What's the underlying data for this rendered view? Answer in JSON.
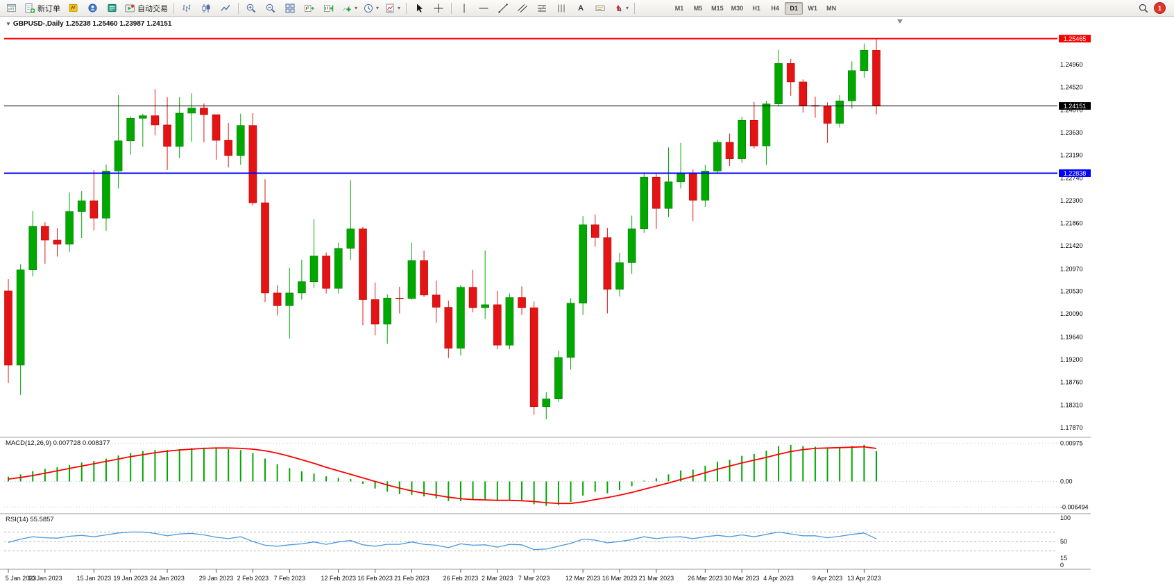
{
  "toolbar": {
    "new_order": "新订单",
    "autotrading": "自动交易",
    "text_tool": "A",
    "timeframes": [
      "M1",
      "M5",
      "M15",
      "M30",
      "H1",
      "H4",
      "D1",
      "W1",
      "MN"
    ],
    "active_timeframe": "D1",
    "notification_count": "1"
  },
  "panels": {
    "main_header": "GBPUSD-,Daily 1.25238 1.25460 1.23987 1.24151",
    "macd": {
      "header": "MACD(12,26,9) 0.007728 0.008377",
      "scale": [
        {
          "label": "0.00975",
          "value": 0.00975
        },
        {
          "label": "0.00",
          "value": 0
        },
        {
          "label": "-0.006494",
          "value": -0.006494
        }
      ]
    },
    "rsi": {
      "header": "RSI(14) 55.5857",
      "scale": [
        {
          "label": "100",
          "value": 100
        },
        {
          "label": "50",
          "value": 50
        },
        {
          "label": "15",
          "value": 15
        },
        {
          "label": "0",
          "value": 0
        }
      ],
      "levels": [
        70,
        50,
        30
      ]
    }
  },
  "chart_data": {
    "type": "candlestick",
    "symbol": "GBPUSD",
    "period": "Daily",
    "current_bar_ohlc": {
      "open": 1.25238,
      "high": 1.2546,
      "low": 1.23987,
      "close": 1.24151
    },
    "ylim": [
      1.1787,
      1.2575
    ],
    "y_ticks": [
      "1.25460",
      "1.24960",
      "1.24520",
      "1.24070",
      "1.23630",
      "1.23190",
      "1.22740",
      "1.22300",
      "1.21860",
      "1.21420",
      "1.20970",
      "1.20530",
      "1.20090",
      "1.19640",
      "1.19200",
      "1.18760",
      "1.18310",
      "1.17870"
    ],
    "x_ticks": [
      {
        "label": "5 Jan 2023",
        "bar": 0
      },
      {
        "label": "10 Jan 2023",
        "bar": 3
      },
      {
        "label": "15 Jan 2023",
        "bar": 7
      },
      {
        "label": "19 Jan 2023",
        "bar": 10
      },
      {
        "label": "24 Jan 2023",
        "bar": 13
      },
      {
        "label": "29 Jan 2023",
        "bar": 17
      },
      {
        "label": "2 Feb 2023",
        "bar": 20
      },
      {
        "label": "7 Feb 2023",
        "bar": 23
      },
      {
        "label": "12 Feb 2023",
        "bar": 27
      },
      {
        "label": "16 Feb 2023",
        "bar": 30
      },
      {
        "label": "21 Feb 2023",
        "bar": 33
      },
      {
        "label": "26 Feb 2023",
        "bar": 37
      },
      {
        "label": "2 Mar 2023",
        "bar": 40
      },
      {
        "label": "7 Mar 2023",
        "bar": 43
      },
      {
        "label": "12 Mar 2023",
        "bar": 47
      },
      {
        "label": "16 Mar 2023",
        "bar": 50
      },
      {
        "label": "21 Mar 2023",
        "bar": 53
      },
      {
        "label": "26 Mar 2023",
        "bar": 57
      },
      {
        "label": "30 Mar 2023",
        "bar": 60
      },
      {
        "label": "4 Apr 2023",
        "bar": 63
      },
      {
        "label": "9 Apr 2023",
        "bar": 67
      },
      {
        "label": "13 Apr 2023",
        "bar": 70
      }
    ],
    "levels": [
      {
        "name": "resistance-line",
        "price": 1.25465,
        "label": "1.25465",
        "color": "#FF0000",
        "width": 2
      },
      {
        "name": "bid-line",
        "price": 1.24151,
        "label": "1.24151",
        "color": "#000000",
        "width": 1
      },
      {
        "name": "support-line",
        "price": 1.22838,
        "label": "1.22838",
        "color": "#0000FF",
        "width": 2
      }
    ],
    "candles": [
      {
        "d": "2023-01-05",
        "o": 1.2054,
        "h": 1.2077,
        "l": 1.1874,
        "c": 1.1909
      },
      {
        "d": "2023-01-06",
        "o": 1.1909,
        "h": 1.2106,
        "l": 1.1851,
        "c": 1.2095
      },
      {
        "d": "2023-01-09",
        "o": 1.2095,
        "h": 1.221,
        "l": 1.2082,
        "c": 1.218
      },
      {
        "d": "2023-01-10",
        "o": 1.218,
        "h": 1.2188,
        "l": 1.2107,
        "c": 1.2153
      },
      {
        "d": "2023-01-11",
        "o": 1.2153,
        "h": 1.2176,
        "l": 1.2121,
        "c": 1.2145
      },
      {
        "d": "2023-01-12",
        "o": 1.2145,
        "h": 1.2246,
        "l": 1.213,
        "c": 1.2209
      },
      {
        "d": "2023-01-13",
        "o": 1.2209,
        "h": 1.2249,
        "l": 1.2157,
        "c": 1.223
      },
      {
        "d": "2023-01-16",
        "o": 1.223,
        "h": 1.229,
        "l": 1.2172,
        "c": 1.2196
      },
      {
        "d": "2023-01-17",
        "o": 1.2196,
        "h": 1.2301,
        "l": 1.2171,
        "c": 1.2288
      },
      {
        "d": "2023-01-18",
        "o": 1.2288,
        "h": 1.2436,
        "l": 1.2254,
        "c": 1.2347
      },
      {
        "d": "2023-01-19",
        "o": 1.2347,
        "h": 1.2395,
        "l": 1.232,
        "c": 1.2391
      },
      {
        "d": "2023-01-20",
        "o": 1.2391,
        "h": 1.24,
        "l": 1.2335,
        "c": 1.2396
      },
      {
        "d": "2023-01-23",
        "o": 1.2396,
        "h": 1.2448,
        "l": 1.2358,
        "c": 1.2378
      },
      {
        "d": "2023-01-24",
        "o": 1.2378,
        "h": 1.2432,
        "l": 1.229,
        "c": 1.2336
      },
      {
        "d": "2023-01-25",
        "o": 1.2336,
        "h": 1.2432,
        "l": 1.2313,
        "c": 1.2401
      },
      {
        "d": "2023-01-26",
        "o": 1.2401,
        "h": 1.244,
        "l": 1.2345,
        "c": 1.2411
      },
      {
        "d": "2023-01-27",
        "o": 1.2411,
        "h": 1.242,
        "l": 1.2344,
        "c": 1.2398
      },
      {
        "d": "2023-01-30",
        "o": 1.2398,
        "h": 1.2398,
        "l": 1.231,
        "c": 1.2348
      },
      {
        "d": "2023-01-31",
        "o": 1.2348,
        "h": 1.2382,
        "l": 1.2295,
        "c": 1.2318
      },
      {
        "d": "2023-02-01",
        "o": 1.2318,
        "h": 1.24,
        "l": 1.23,
        "c": 1.2377
      },
      {
        "d": "2023-02-02",
        "o": 1.2377,
        "h": 1.2401,
        "l": 1.222,
        "c": 1.2226
      },
      {
        "d": "2023-02-03",
        "o": 1.2226,
        "h": 1.2272,
        "l": 1.2032,
        "c": 1.205
      },
      {
        "d": "2023-02-06",
        "o": 1.205,
        "h": 1.2065,
        "l": 1.2006,
        "c": 1.2025
      },
      {
        "d": "2023-02-07",
        "o": 1.2025,
        "h": 1.2099,
        "l": 1.1961,
        "c": 1.205
      },
      {
        "d": "2023-02-08",
        "o": 1.205,
        "h": 1.2115,
        "l": 1.2037,
        "c": 1.2072
      },
      {
        "d": "2023-02-09",
        "o": 1.2072,
        "h": 1.2194,
        "l": 1.2059,
        "c": 1.2122
      },
      {
        "d": "2023-02-10",
        "o": 1.2122,
        "h": 1.2129,
        "l": 1.2049,
        "c": 1.2059
      },
      {
        "d": "2023-02-13",
        "o": 1.2059,
        "h": 1.2148,
        "l": 1.2049,
        "c": 1.2137
      },
      {
        "d": "2023-02-14",
        "o": 1.2137,
        "h": 1.227,
        "l": 1.2114,
        "c": 1.2175
      },
      {
        "d": "2023-02-15",
        "o": 1.2175,
        "h": 1.2179,
        "l": 1.1987,
        "c": 1.2037
      },
      {
        "d": "2023-02-16",
        "o": 1.2037,
        "h": 1.207,
        "l": 1.1967,
        "c": 1.1989
      },
      {
        "d": "2023-02-17",
        "o": 1.1989,
        "h": 1.2047,
        "l": 1.1951,
        "c": 1.204
      },
      {
        "d": "2023-02-20",
        "o": 1.204,
        "h": 1.2062,
        "l": 1.201,
        "c": 1.2039
      },
      {
        "d": "2023-02-21",
        "o": 1.2039,
        "h": 1.2148,
        "l": 1.2037,
        "c": 1.2113
      },
      {
        "d": "2023-02-22",
        "o": 1.2113,
        "h": 1.2133,
        "l": 1.2042,
        "c": 1.2046
      },
      {
        "d": "2023-02-23",
        "o": 1.2046,
        "h": 1.2074,
        "l": 1.1992,
        "c": 1.2022
      },
      {
        "d": "2023-02-24",
        "o": 1.2022,
        "h": 1.2035,
        "l": 1.1923,
        "c": 1.1942
      },
      {
        "d": "2023-02-27",
        "o": 1.1942,
        "h": 1.2065,
        "l": 1.1928,
        "c": 1.2061
      },
      {
        "d": "2023-02-28",
        "o": 1.2061,
        "h": 1.2095,
        "l": 1.2012,
        "c": 1.2021
      },
      {
        "d": "2023-03-01",
        "o": 1.2021,
        "h": 1.2133,
        "l": 1.1999,
        "c": 1.2027
      },
      {
        "d": "2023-03-02",
        "o": 1.2027,
        "h": 1.2054,
        "l": 1.194,
        "c": 1.1948
      },
      {
        "d": "2023-03-03",
        "o": 1.1948,
        "h": 1.2049,
        "l": 1.194,
        "c": 1.2041
      },
      {
        "d": "2023-03-06",
        "o": 1.2041,
        "h": 1.2063,
        "l": 1.2007,
        "c": 1.2021
      },
      {
        "d": "2023-03-07",
        "o": 1.2021,
        "h": 1.2033,
        "l": 1.1812,
        "c": 1.1828
      },
      {
        "d": "2023-03-08",
        "o": 1.1828,
        "h": 1.1856,
        "l": 1.1803,
        "c": 1.1843
      },
      {
        "d": "2023-03-09",
        "o": 1.1843,
        "h": 1.1937,
        "l": 1.1837,
        "c": 1.1924
      },
      {
        "d": "2023-03-10",
        "o": 1.1924,
        "h": 1.204,
        "l": 1.19,
        "c": 1.203
      },
      {
        "d": "2023-03-13",
        "o": 1.203,
        "h": 1.22,
        "l": 1.2007,
        "c": 1.2183
      },
      {
        "d": "2023-03-14",
        "o": 1.2183,
        "h": 1.2203,
        "l": 1.214,
        "c": 1.2158
      },
      {
        "d": "2023-03-15",
        "o": 1.2158,
        "h": 1.2177,
        "l": 1.201,
        "c": 1.2057
      },
      {
        "d": "2023-03-16",
        "o": 1.2057,
        "h": 1.2128,
        "l": 1.2043,
        "c": 1.2109
      },
      {
        "d": "2023-03-17",
        "o": 1.2109,
        "h": 1.2201,
        "l": 1.2087,
        "c": 1.2175
      },
      {
        "d": "2023-03-20",
        "o": 1.2175,
        "h": 1.2284,
        "l": 1.2167,
        "c": 1.2276
      },
      {
        "d": "2023-03-21",
        "o": 1.2276,
        "h": 1.2283,
        "l": 1.2175,
        "c": 1.2215
      },
      {
        "d": "2023-03-22",
        "o": 1.2215,
        "h": 1.2334,
        "l": 1.2198,
        "c": 1.2267
      },
      {
        "d": "2023-03-23",
        "o": 1.2267,
        "h": 1.2343,
        "l": 1.2254,
        "c": 1.2284
      },
      {
        "d": "2023-03-24",
        "o": 1.2284,
        "h": 1.2291,
        "l": 1.219,
        "c": 1.2231
      },
      {
        "d": "2023-03-27",
        "o": 1.2231,
        "h": 1.23,
        "l": 1.2218,
        "c": 1.2288
      },
      {
        "d": "2023-03-28",
        "o": 1.2288,
        "h": 1.2349,
        "l": 1.2283,
        "c": 1.2344
      },
      {
        "d": "2023-03-29",
        "o": 1.2344,
        "h": 1.2361,
        "l": 1.2298,
        "c": 1.2312
      },
      {
        "d": "2023-03-30",
        "o": 1.2312,
        "h": 1.2394,
        "l": 1.2304,
        "c": 1.2387
      },
      {
        "d": "2023-03-31",
        "o": 1.2387,
        "h": 1.2423,
        "l": 1.2332,
        "c": 1.2337
      },
      {
        "d": "2023-04-03",
        "o": 1.2337,
        "h": 1.2425,
        "l": 1.23,
        "c": 1.2419
      },
      {
        "d": "2023-04-04",
        "o": 1.2419,
        "h": 1.2525,
        "l": 1.2414,
        "c": 1.2498
      },
      {
        "d": "2023-04-05",
        "o": 1.2498,
        "h": 1.2507,
        "l": 1.2435,
        "c": 1.2462
      },
      {
        "d": "2023-04-06",
        "o": 1.2462,
        "h": 1.2467,
        "l": 1.2402,
        "c": 1.2416
      },
      {
        "d": "2023-04-07",
        "o": 1.2416,
        "h": 1.2433,
        "l": 1.2392,
        "c": 1.2415
      },
      {
        "d": "2023-04-10",
        "o": 1.2415,
        "h": 1.2422,
        "l": 1.2343,
        "c": 1.2381
      },
      {
        "d": "2023-04-11",
        "o": 1.2381,
        "h": 1.2436,
        "l": 1.2373,
        "c": 1.2425
      },
      {
        "d": "2023-04-12",
        "o": 1.2425,
        "h": 1.2502,
        "l": 1.241,
        "c": 1.2484
      },
      {
        "d": "2023-04-13",
        "o": 1.2484,
        "h": 1.2537,
        "l": 1.247,
        "c": 1.2524
      },
      {
        "d": "2023-04-14",
        "o": 1.25238,
        "h": 1.2546,
        "l": 1.23987,
        "c": 1.24151
      }
    ],
    "indicators": {
      "macd": {
        "params": "12,26,9",
        "display_values": [
          0.007728,
          0.008377
        ],
        "histogram": [
          0.0012,
          0.0018,
          0.0026,
          0.0032,
          0.0036,
          0.0042,
          0.0048,
          0.0052,
          0.0058,
          0.0066,
          0.0072,
          0.0077,
          0.008,
          0.008,
          0.0082,
          0.0085,
          0.0086,
          0.0085,
          0.0082,
          0.008,
          0.0072,
          0.0058,
          0.0044,
          0.0034,
          0.0026,
          0.002,
          0.0013,
          0.0009,
          0.0006,
          -0.0006,
          -0.0018,
          -0.0026,
          -0.0032,
          -0.0034,
          -0.0038,
          -0.0043,
          -0.005,
          -0.005,
          -0.0048,
          -0.0046,
          -0.005,
          -0.0048,
          -0.005,
          -0.0058,
          -0.0062,
          -0.006,
          -0.0052,
          -0.0036,
          -0.0026,
          -0.003,
          -0.0022,
          -0.0012,
          0.0002,
          0.0008,
          0.0018,
          0.0028,
          0.003,
          0.004,
          0.005,
          0.0055,
          0.0065,
          0.007,
          0.0078,
          0.009,
          0.0093,
          0.009,
          0.0088,
          0.0085,
          0.0086,
          0.009,
          0.0093,
          0.007728
        ],
        "signal": [
          0.0006,
          0.001,
          0.0015,
          0.0021,
          0.0027,
          0.0033,
          0.0039,
          0.0045,
          0.0051,
          0.0057,
          0.0063,
          0.0068,
          0.0073,
          0.0077,
          0.008,
          0.0082,
          0.0084,
          0.0085,
          0.0085,
          0.0084,
          0.0082,
          0.0078,
          0.0072,
          0.0064,
          0.0055,
          0.0046,
          0.0036,
          0.0027,
          0.0018,
          0.0009,
          0.0,
          -0.0009,
          -0.0017,
          -0.0024,
          -0.003,
          -0.0035,
          -0.004,
          -0.0044,
          -0.0046,
          -0.0047,
          -0.0048,
          -0.0048,
          -0.0049,
          -0.0051,
          -0.0054,
          -0.0056,
          -0.0056,
          -0.0052,
          -0.0046,
          -0.0041,
          -0.0035,
          -0.0028,
          -0.002,
          -0.0012,
          -0.0004,
          0.0005,
          0.0013,
          0.0022,
          0.0031,
          0.0039,
          0.0047,
          0.0054,
          0.0061,
          0.0069,
          0.0076,
          0.0081,
          0.0084,
          0.0085,
          0.0086,
          0.0087,
          0.0088,
          0.008377
        ]
      },
      "rsi": {
        "params": "14",
        "display_value": 55.5857,
        "values": [
          48,
          55,
          60,
          58,
          57,
          61,
          63,
          60,
          64,
          68,
          70,
          70,
          67,
          62,
          66,
          67,
          64,
          59,
          56,
          60,
          50,
          42,
          40,
          43,
          45,
          49,
          44,
          49,
          52,
          43,
          40,
          44,
          44,
          49,
          44,
          42,
          37,
          45,
          42,
          43,
          38,
          44,
          43,
          33,
          34,
          40,
          46,
          55,
          53,
          47,
          50,
          54,
          60,
          56,
          59,
          60,
          56,
          60,
          63,
          60,
          64,
          60,
          65,
          70,
          66,
          62,
          62,
          58,
          61,
          65,
          68,
          55.5857
        ]
      }
    }
  },
  "colors": {
    "bull": "#00A800",
    "bull_border": "#007C00",
    "bear": "#E41414",
    "bear_border": "#B00000",
    "macd_hist": "#00A800",
    "macd_signal": "#FF0000",
    "rsi_line": "#4A97E0",
    "scale_text": "#000000",
    "separator": "#9C9A96",
    "grid_dotted": "#C8C8C8",
    "rsi_level": "#B5B5B5"
  }
}
